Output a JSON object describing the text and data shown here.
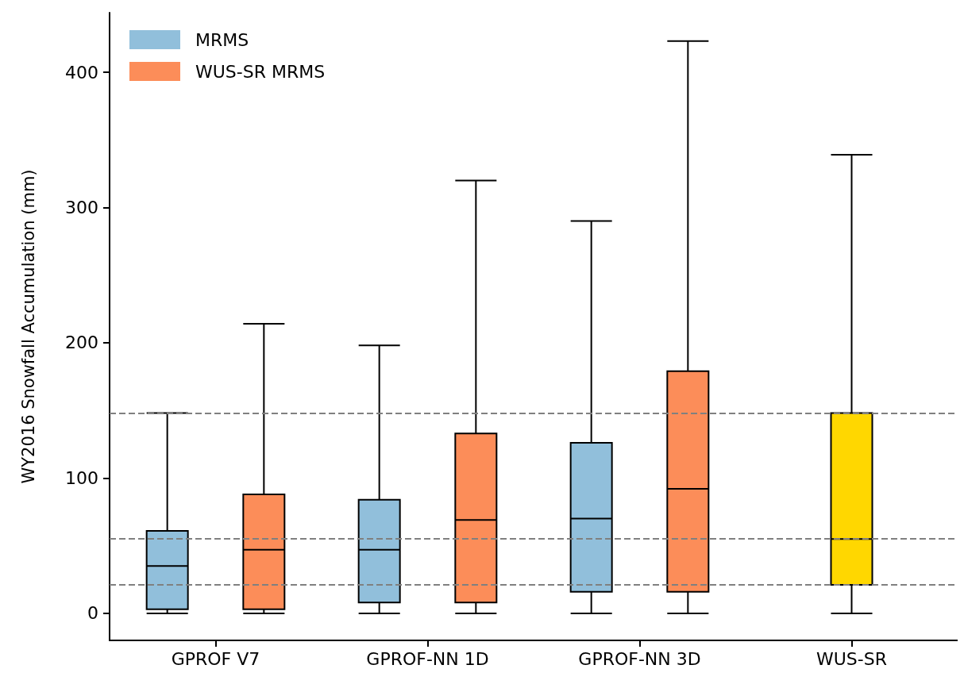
{
  "chart_data": {
    "type": "box",
    "ylabel": "WY2016 Snowfall Accumulation (mm)",
    "categories": [
      "GPROF V7",
      "GPROF-NN 1D",
      "GPROF-NN 3D",
      "WUS-SR"
    ],
    "ylim": [
      -20,
      444
    ],
    "yticks": [
      0,
      100,
      200,
      300,
      400
    ],
    "grid": false,
    "legend": "top left",
    "series": [
      {
        "name": "MRMS",
        "color": "#91bfdb",
        "boxes": [
          {
            "low": 0,
            "q1": 3,
            "median": 35,
            "q3": 61,
            "high": 148
          },
          {
            "low": 0,
            "q1": 8,
            "median": 47,
            "q3": 84,
            "high": 198
          },
          {
            "low": 0,
            "q1": 16,
            "median": 70,
            "q3": 126,
            "high": 290
          },
          null
        ]
      },
      {
        "name": "WUS-SR MRMS",
        "color": "#fc8d59",
        "boxes": [
          {
            "low": 0,
            "q1": 3,
            "median": 47,
            "q3": 88,
            "high": 214
          },
          {
            "low": 0,
            "q1": 8,
            "median": 69,
            "q3": 133,
            "high": 320
          },
          {
            "low": 0,
            "q1": 16,
            "median": 92,
            "q3": 179,
            "high": 423
          },
          null
        ]
      },
      {
        "color": "#ffd700",
        "boxes": [
          null,
          null,
          null,
          {
            "low": 0,
            "q1": 21,
            "median": 55,
            "q3": 148,
            "high": 339
          }
        ]
      }
    ],
    "ref_lines": [
      {
        "axis": "y",
        "value": 148,
        "color": "#808080",
        "line_style": "dashed"
      },
      {
        "axis": "y",
        "value": 55,
        "color": "#808080",
        "line_style": "dashed"
      },
      {
        "axis": "y",
        "value": 21,
        "color": "#808080",
        "line_style": "dashed"
      }
    ]
  }
}
